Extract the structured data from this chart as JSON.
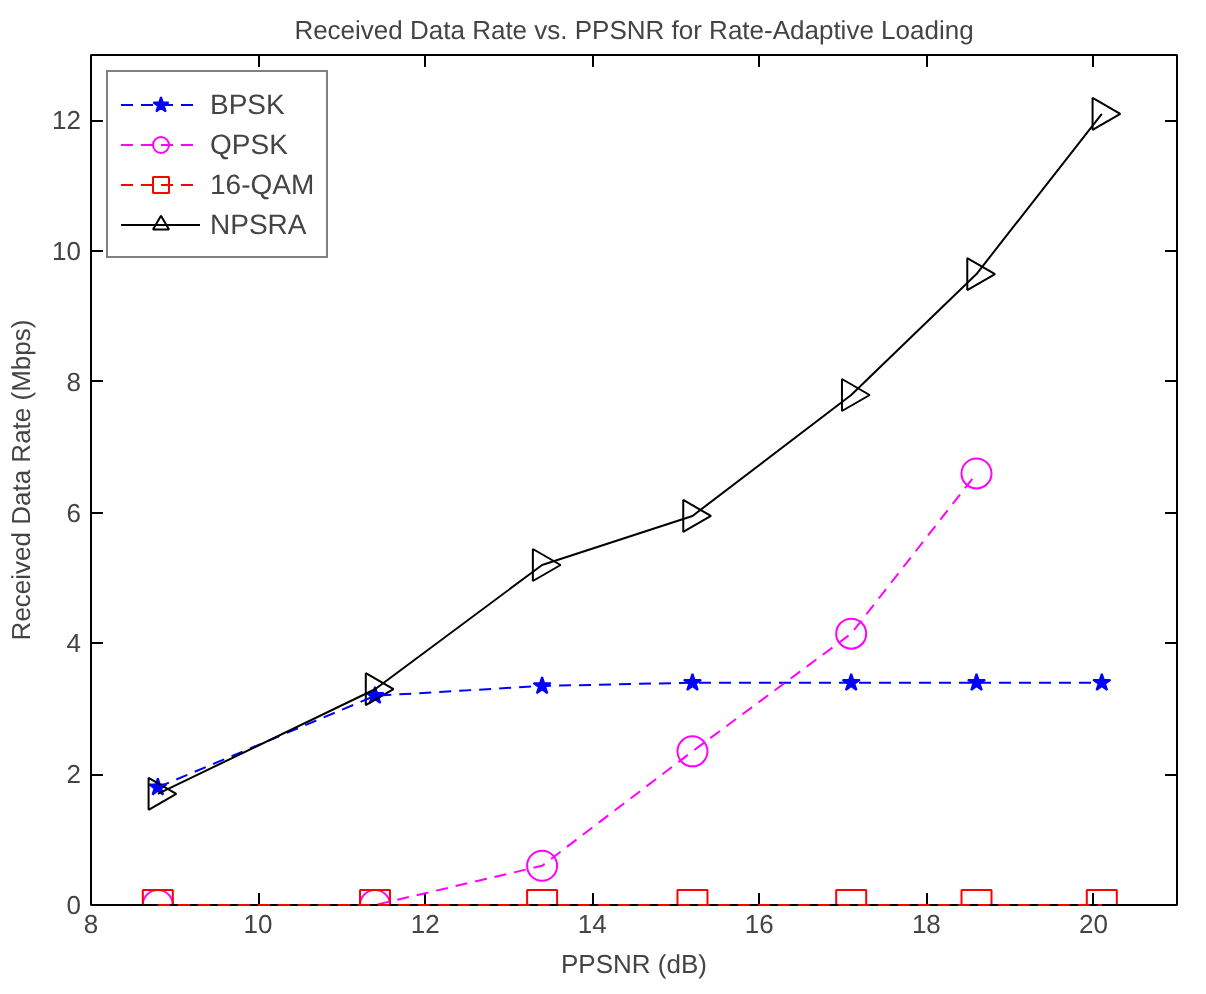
{
  "chart_data": {
    "type": "line",
    "title": "Received Data Rate vs. PPSNR for Rate-Adaptive Loading",
    "xlabel": "PPSNR (dB)",
    "ylabel": "Received Data Rate (Mbps)",
    "x": [
      8.8,
      11.4,
      13.4,
      15.2,
      17.1,
      18.6,
      20.1
    ],
    "series": [
      {
        "name": "BPSK",
        "color": "#0000ff",
        "marker": "star",
        "line_style": "dashed",
        "values": [
          1.8,
          3.2,
          3.35,
          3.4,
          3.4,
          3.4,
          3.4
        ]
      },
      {
        "name": "QPSK",
        "color": "#ff00ff",
        "marker": "circle",
        "line_style": "dashed",
        "values": [
          0,
          0,
          0.6,
          2.35,
          4.15,
          6.6,
          null
        ]
      },
      {
        "name": "16-QAM",
        "color": "#ff0000",
        "marker": "square",
        "line_style": "dashed",
        "values": [
          0,
          0,
          0,
          0,
          0,
          0,
          0
        ]
      },
      {
        "name": "NPSRA",
        "color": "#000000",
        "marker": "triangle",
        "line_style": "solid",
        "values": [
          1.7,
          3.3,
          5.2,
          5.95,
          7.8,
          9.65,
          12.1
        ]
      }
    ],
    "xlim": [
      8,
      21
    ],
    "ylim": [
      0,
      13
    ],
    "xticks": [
      8,
      10,
      12,
      14,
      16,
      18,
      20
    ],
    "yticks": [
      0,
      2,
      4,
      6,
      8,
      10,
      12
    ],
    "grid": false,
    "legend": "top left"
  }
}
